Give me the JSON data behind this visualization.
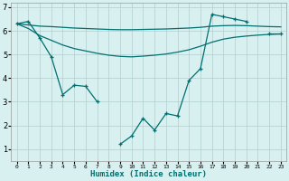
{
  "x": [
    0,
    1,
    2,
    3,
    4,
    5,
    6,
    7,
    8,
    9,
    10,
    11,
    12,
    13,
    14,
    15,
    16,
    17,
    18,
    19,
    20,
    21,
    22,
    23
  ],
  "main_y": [
    6.3,
    6.4,
    5.7,
    4.9,
    3.3,
    3.7,
    3.65,
    3.0,
    null,
    1.2,
    1.55,
    2.3,
    1.8,
    2.5,
    2.4,
    3.9,
    4.4,
    6.7,
    6.6,
    6.5,
    6.4,
    null,
    5.9,
    5.9
  ],
  "upper_y": [
    6.3,
    6.25,
    6.2,
    6.18,
    6.15,
    6.12,
    6.1,
    6.08,
    6.06,
    6.05,
    6.05,
    6.06,
    6.07,
    6.08,
    6.1,
    6.12,
    6.15,
    6.2,
    6.22,
    6.23,
    6.22,
    6.2,
    6.18,
    6.17
  ],
  "lower_y": [
    6.3,
    6.1,
    5.8,
    5.6,
    5.4,
    5.25,
    5.15,
    5.05,
    4.97,
    4.92,
    4.9,
    4.93,
    4.97,
    5.02,
    5.1,
    5.2,
    5.35,
    5.52,
    5.65,
    5.73,
    5.78,
    5.82,
    5.85,
    5.87
  ],
  "color": "#007070",
  "bg_color": "#d8f0f0",
  "grid_color": "#b0cece",
  "xlabel": "Humidex (Indice chaleur)",
  "ylim": [
    0.5,
    7.2
  ],
  "xlim": [
    -0.5,
    23.5
  ],
  "yticks": [
    1,
    2,
    3,
    4,
    5,
    6,
    7
  ],
  "xticks": [
    0,
    1,
    2,
    3,
    4,
    5,
    6,
    7,
    8,
    9,
    10,
    11,
    12,
    13,
    14,
    15,
    16,
    17,
    18,
    19,
    20,
    21,
    22,
    23
  ]
}
